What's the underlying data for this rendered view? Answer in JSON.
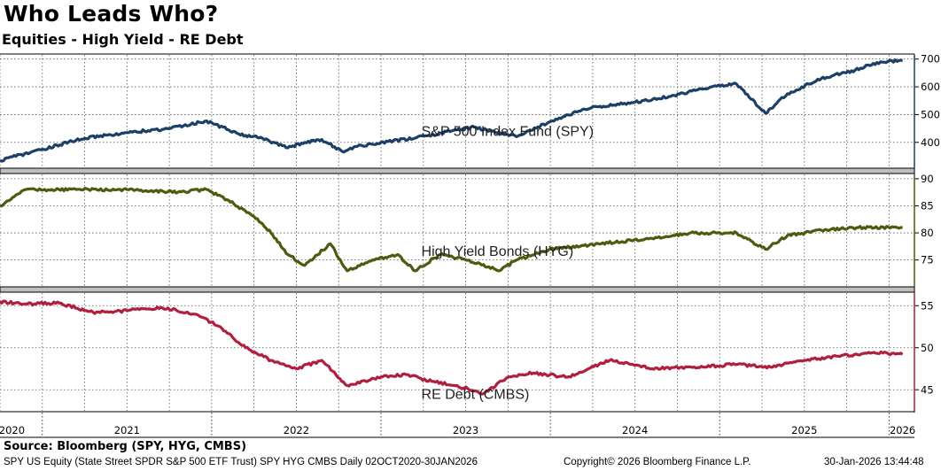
{
  "header": {
    "title": "Who Leads Who?",
    "subtitle": "Equities - High Yield - RE Debt"
  },
  "footer": {
    "source": "Source: Bloomberg (SPY, HYG, CMBS)",
    "left": "SPY US Equity (State Street SPDR S&P 500 ETF Trust) SPY HYG CMBS Daily 02OCT2020-30JAN2026",
    "copyright": "Copyright© 2026 Bloomberg Finance L.P.",
    "timestamp": "30-Jan-2026 13:44:48"
  },
  "chart_data": [
    {
      "type": "line",
      "panel": "top",
      "series_label": "S&P 500 Index Fund (SPY)",
      "color": "#1c3f66",
      "ylim": [
        310,
        715
      ],
      "yticks": [
        400,
        500,
        600,
        700
      ],
      "x": [
        2020.75,
        2021.0,
        2021.25,
        2021.5,
        2021.75,
        2021.97,
        2022.1,
        2022.2,
        2022.3,
        2022.45,
        2022.55,
        2022.65,
        2022.78,
        2022.85,
        2023.0,
        2023.2,
        2023.45,
        2023.55,
        2023.8,
        2024.0,
        2024.2,
        2024.5,
        2024.7,
        2024.95,
        2025.1,
        2025.27,
        2025.4,
        2025.6,
        2025.8,
        2025.95,
        2026.08
      ],
      "values": [
        335,
        375,
        415,
        435,
        450,
        477,
        445,
        425,
        415,
        380,
        400,
        410,
        365,
        385,
        400,
        415,
        445,
        455,
        420,
        475,
        520,
        545,
        565,
        600,
        610,
        505,
        575,
        630,
        660,
        690,
        695
      ]
    },
    {
      "type": "line",
      "panel": "middle",
      "series_label": "High Yield Bonds (HYG)",
      "color": "#4a5c10",
      "ylim": [
        70.2,
        90.8
      ],
      "yticks": [
        75,
        80,
        85,
        90
      ],
      "x": [
        2020.75,
        2020.9,
        2021.2,
        2021.5,
        2021.8,
        2021.97,
        2022.1,
        2022.25,
        2022.35,
        2022.45,
        2022.55,
        2022.7,
        2022.8,
        2022.95,
        2023.1,
        2023.2,
        2023.35,
        2023.5,
        2023.7,
        2023.8,
        2024.0,
        2024.3,
        2024.6,
        2024.85,
        2025.1,
        2025.27,
        2025.4,
        2025.6,
        2025.85,
        2026.08
      ],
      "values": [
        85,
        88,
        88,
        88,
        87.5,
        88,
        86,
        83,
        80,
        76,
        74,
        78,
        73,
        75,
        76,
        73,
        76,
        75,
        73,
        75,
        77,
        78,
        79,
        80,
        80,
        77,
        79.5,
        80.5,
        81,
        81
      ]
    },
    {
      "type": "line",
      "panel": "bottom",
      "series_label": "RE Debt (CMBS)",
      "color": "#b0203e",
      "ylim": [
        42.5,
        56.5
      ],
      "yticks": [
        45,
        50,
        55
      ],
      "x": [
        2020.75,
        2020.9,
        2021.1,
        2021.3,
        2021.5,
        2021.7,
        2021.9,
        2022.05,
        2022.2,
        2022.35,
        2022.5,
        2022.65,
        2022.8,
        2023.0,
        2023.15,
        2023.3,
        2023.45,
        2023.6,
        2023.75,
        2023.9,
        2024.1,
        2024.35,
        2024.6,
        2024.85,
        2025.1,
        2025.3,
        2025.5,
        2025.7,
        2025.9,
        2026.08
      ],
      "values": [
        55.5,
        55.2,
        55.3,
        54.2,
        54.4,
        54.8,
        54,
        52.5,
        50,
        48.5,
        47.5,
        48.5,
        45.5,
        46.5,
        46.8,
        46,
        45.5,
        44.5,
        46.5,
        47,
        46.5,
        48.5,
        47.5,
        47.7,
        48,
        47.7,
        48.5,
        49,
        49.4,
        49.2
      ]
    }
  ],
  "x_axis": {
    "year_labels": [
      "2020",
      "2021",
      "2022",
      "2023",
      "2024",
      "2025",
      "2026"
    ],
    "year_positions": [
      2020.82,
      2021.5,
      2022.5,
      2023.5,
      2024.5,
      2025.5,
      2026.08
    ],
    "dividers": [
      2021,
      2022,
      2023,
      2024,
      2025,
      2026
    ],
    "range": [
      2020.75,
      2026.15
    ]
  }
}
